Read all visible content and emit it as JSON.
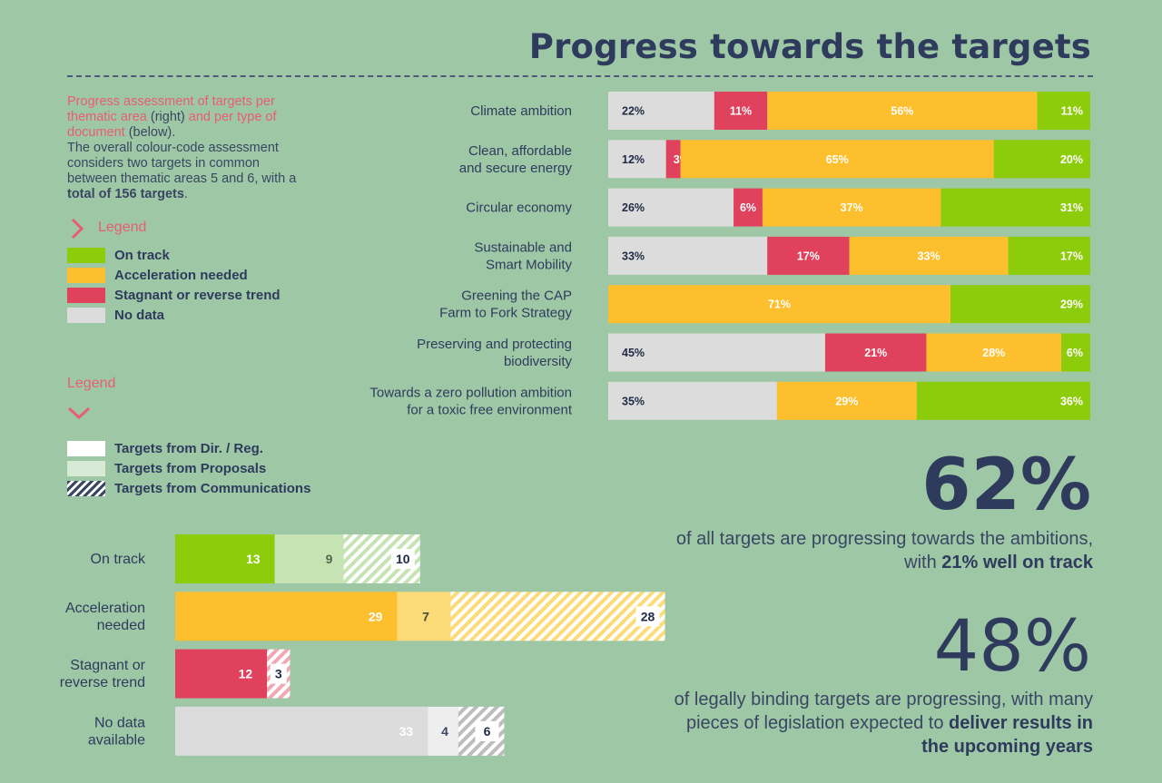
{
  "title": "Progress towards the targets",
  "intro": {
    "pink1": "Progress assessment of targets per thematic area",
    "dark1": " (right) ",
    "pink2": "and per type of document",
    "dark2": " (below).",
    "body": "The overall colour-code assessment considers two targets in common between thematic areas 5 and 6, with a ",
    "bold": "total of 156 targets",
    "end": "."
  },
  "legend1": {
    "title": "Legend",
    "items": [
      {
        "label": "On track",
        "color": "#8dcc0a"
      },
      {
        "label": "Acceleration needed",
        "color": "#fdbf2d"
      },
      {
        "label": "Stagnant or reverse trend",
        "color": "#e0415c"
      },
      {
        "label": "No data",
        "color": "#dcdcdc"
      }
    ]
  },
  "legend2": {
    "title": "Legend",
    "items": [
      {
        "label": "Targets from Dir. / Reg."
      },
      {
        "label": "Targets from Proposals"
      },
      {
        "label": "Targets from Communications"
      }
    ]
  },
  "colors": {
    "on_track": "#8dcc0a",
    "acceleration": "#fdbf2d",
    "stagnant": "#e0415c",
    "no_data": "#dcdcdc",
    "on_track_light": "#c6e3b3",
    "acceleration_light": "#fddb78",
    "stagnant_light": "#f2a7b3",
    "no_data_light": "#eeeeee"
  },
  "stats": {
    "pct1": "62%",
    "text1_a": "of all targets are progressing towards the ambitions, with ",
    "text1_b": "21% well on track",
    "pct2": "48%",
    "text2_a": "of legally binding targets are progressing, with many pieces of legislation expected to ",
    "text2_b": "deliver results in the upcoming years"
  },
  "chart_data": [
    {
      "type": "bar",
      "orientation": "horizontal-stacked-100",
      "categories": [
        [
          "Climate ambition"
        ],
        [
          "Clean, affordable",
          "and secure energy"
        ],
        [
          "Circular economy"
        ],
        [
          "Sustainable and",
          "Smart Mobility"
        ],
        [
          "Greening the CAP",
          "Farm to Fork Strategy"
        ],
        [
          "Preserving and protecting",
          "biodiversity"
        ],
        [
          "Towards a zero pollution ambition",
          "for a toxic free environment"
        ]
      ],
      "series": [
        {
          "name": "No data",
          "color_key": "no_data",
          "values": [
            22,
            12,
            26,
            33,
            0,
            45,
            35
          ]
        },
        {
          "name": "Stagnant or reverse trend",
          "color_key": "stagnant",
          "values": [
            11,
            3,
            6,
            17,
            0,
            21,
            0
          ]
        },
        {
          "name": "Acceleration needed",
          "color_key": "acceleration",
          "values": [
            56,
            65,
            37,
            33,
            71,
            28,
            29
          ]
        },
        {
          "name": "On track",
          "color_key": "on_track",
          "values": [
            11,
            20,
            31,
            17,
            29,
            6,
            36
          ]
        }
      ],
      "unit": "%"
    },
    {
      "type": "bar",
      "orientation": "horizontal-stacked",
      "categories": [
        [
          "On track"
        ],
        [
          "Acceleration",
          "needed"
        ],
        [
          "Stagnant or",
          "reverse trend"
        ],
        [
          "No data",
          "available"
        ]
      ],
      "status_keys": [
        "on_track",
        "acceleration",
        "stagnant",
        "no_data"
      ],
      "series": [
        {
          "name": "Targets from Dir. / Reg.",
          "values": [
            13,
            29,
            12,
            33
          ]
        },
        {
          "name": "Targets from Proposals",
          "values": [
            9,
            7,
            0,
            4
          ]
        },
        {
          "name": "Targets from Communications",
          "values": [
            10,
            28,
            3,
            6
          ]
        }
      ]
    }
  ]
}
